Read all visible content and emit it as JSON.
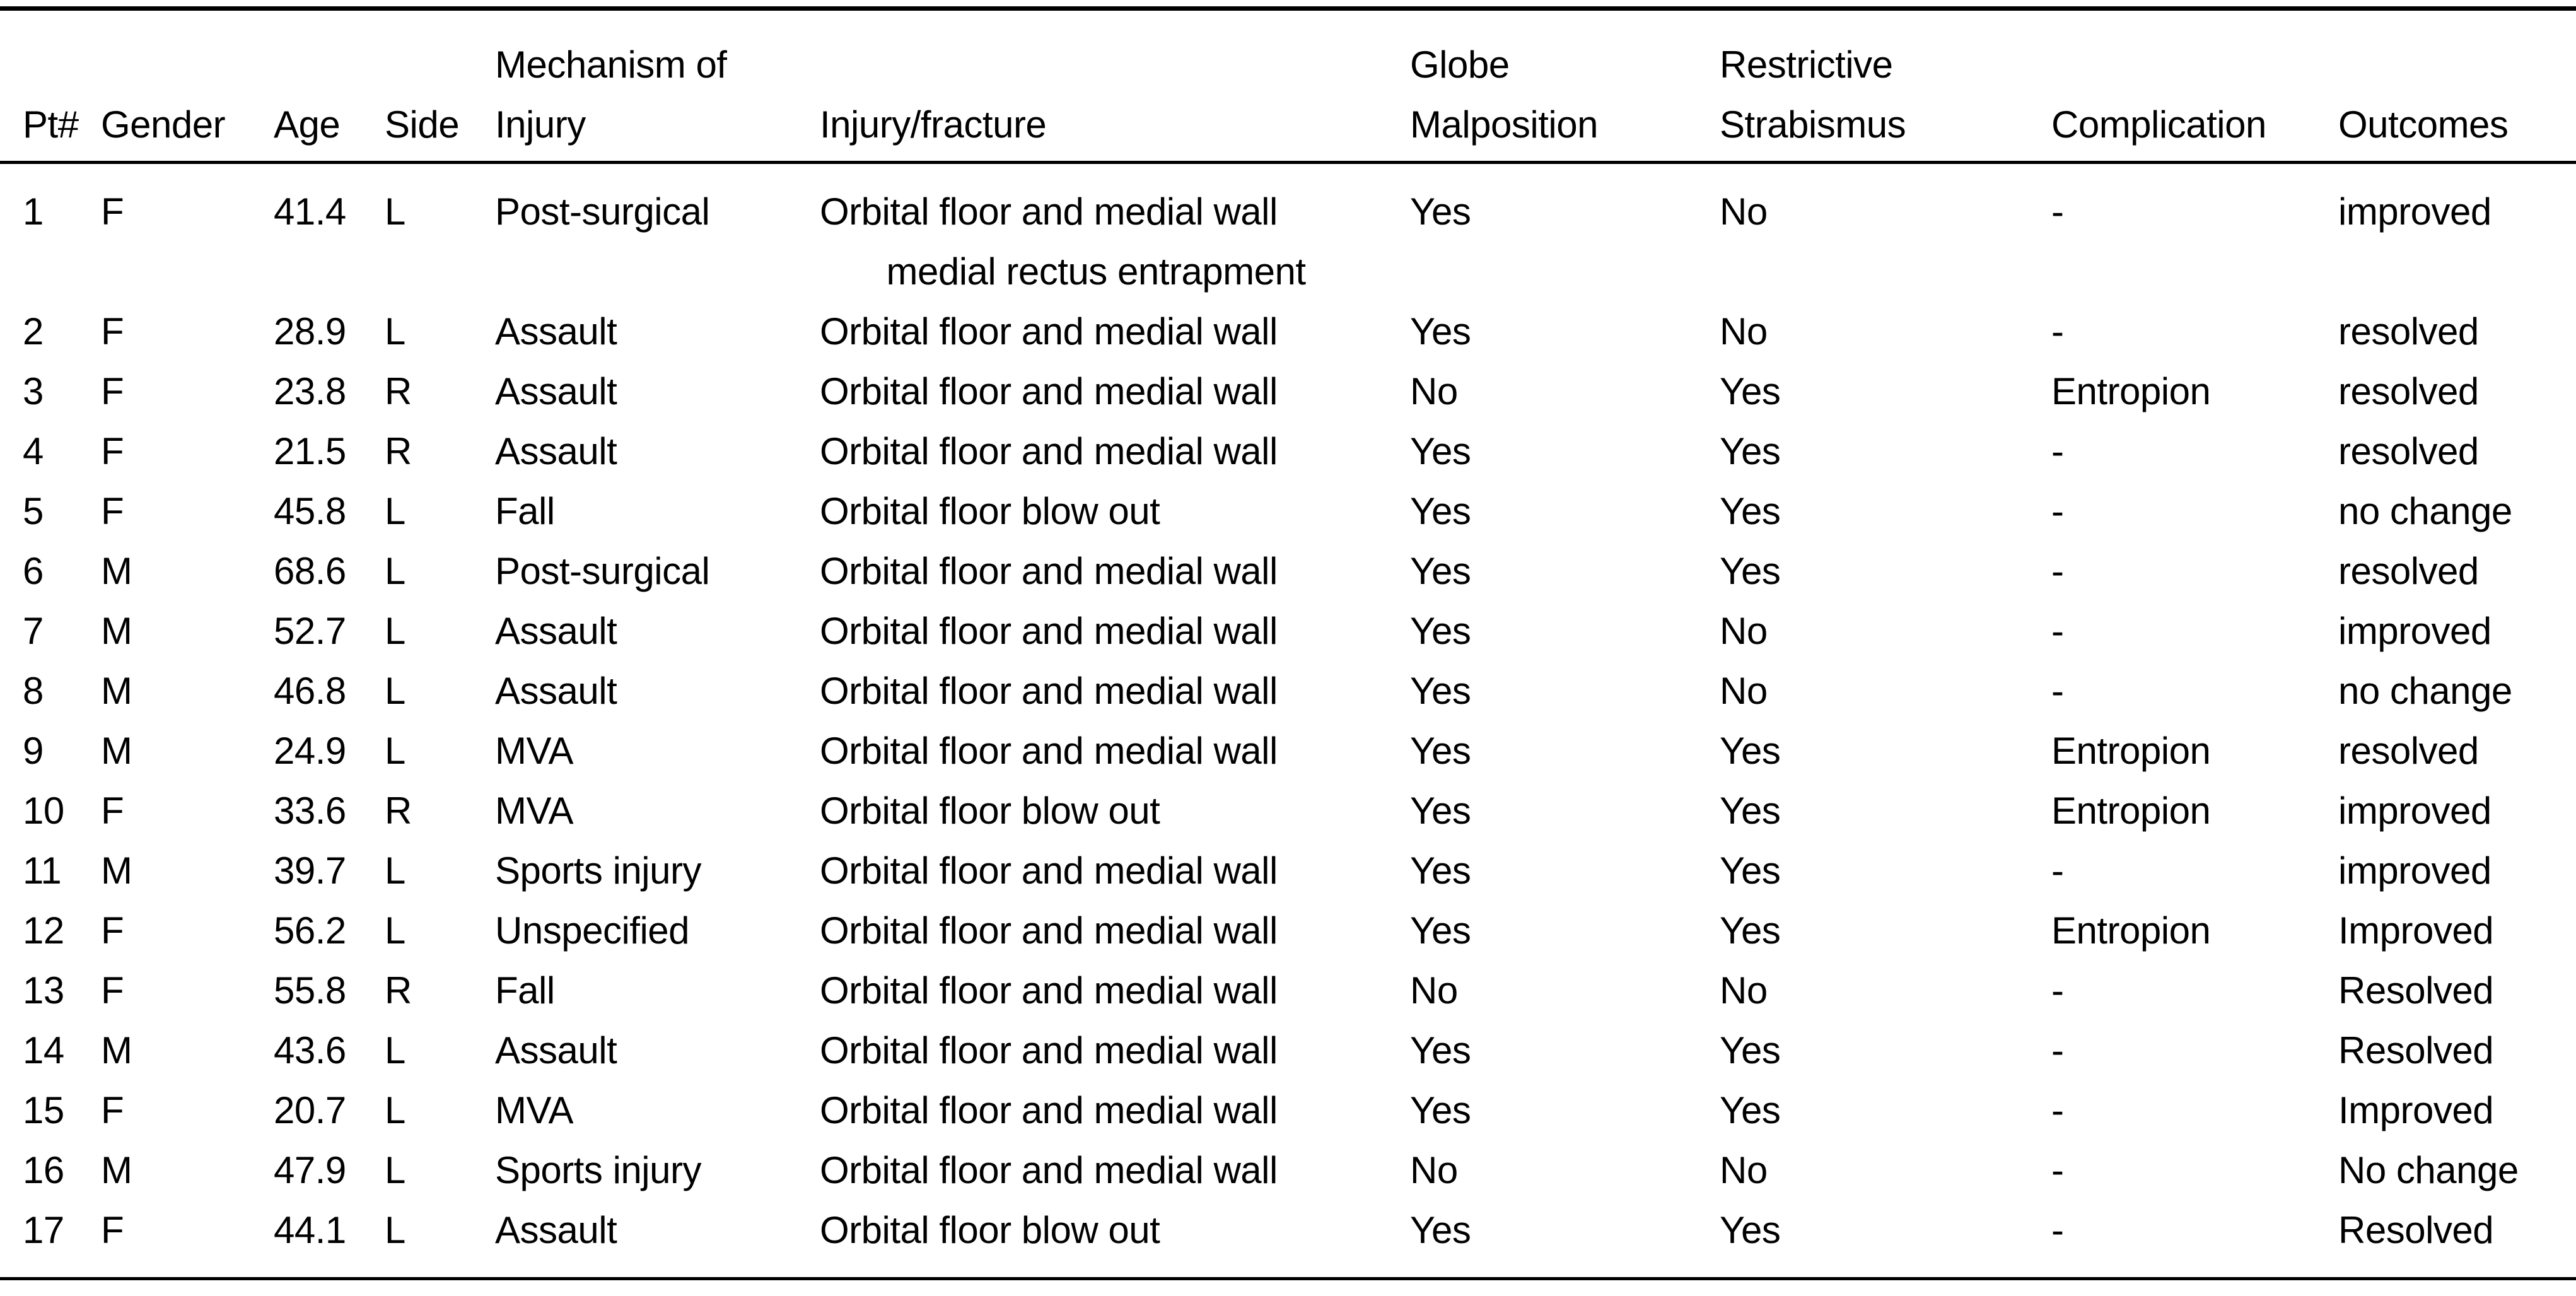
{
  "table": {
    "headers": [
      "Pt#",
      "Gender",
      "Age",
      "Side",
      "Mechanism of\nInjury",
      "Injury/fracture",
      "Globe\nMalposition",
      "Restrictive\nStrabismus",
      "Complication",
      "Outcomes"
    ],
    "rows": [
      {
        "pt": "1",
        "gender": "F",
        "age": "41.4",
        "side": "L",
        "mechanism": "Post-surgical",
        "injury": [
          "Orbital floor and medial wall",
          "medial rectus entrapment"
        ],
        "globe": "Yes",
        "strabismus": "No",
        "complication": "-",
        "outcome": "improved"
      },
      {
        "pt": "2",
        "gender": "F",
        "age": "28.9",
        "side": "L",
        "mechanism": "Assault",
        "injury": "Orbital floor and medial wall",
        "globe": "Yes",
        "strabismus": "No",
        "complication": "-",
        "outcome": "resolved"
      },
      {
        "pt": "3",
        "gender": "F",
        "age": "23.8",
        "side": "R",
        "mechanism": "Assault",
        "injury": "Orbital floor and medial wall",
        "globe": "No",
        "strabismus": "Yes",
        "complication": "Entropion",
        "outcome": "resolved"
      },
      {
        "pt": "4",
        "gender": "F",
        "age": "21.5",
        "side": "R",
        "mechanism": "Assault",
        "injury": "Orbital floor and medial wall",
        "globe": "Yes",
        "strabismus": "Yes",
        "complication": "-",
        "outcome": "resolved"
      },
      {
        "pt": "5",
        "gender": "F",
        "age": "45.8",
        "side": "L",
        "mechanism": "Fall",
        "injury": "Orbital floor blow out",
        "globe": "Yes",
        "strabismus": "Yes",
        "complication": "-",
        "outcome": "no change"
      },
      {
        "pt": "6",
        "gender": "M",
        "age": "68.6",
        "side": "L",
        "mechanism": "Post-surgical",
        "injury": "Orbital floor and medial wall",
        "globe": "Yes",
        "strabismus": "Yes",
        "complication": "-",
        "outcome": "resolved"
      },
      {
        "pt": "7",
        "gender": "M",
        "age": "52.7",
        "side": "L",
        "mechanism": "Assault",
        "injury": "Orbital floor and medial wall",
        "globe": "Yes",
        "strabismus": "No",
        "complication": "-",
        "outcome": "improved"
      },
      {
        "pt": "8",
        "gender": "M",
        "age": "46.8",
        "side": "L",
        "mechanism": "Assault",
        "injury": "Orbital floor and medial wall",
        "globe": "Yes",
        "strabismus": "No",
        "complication": "-",
        "outcome": "no change"
      },
      {
        "pt": "9",
        "gender": "M",
        "age": "24.9",
        "side": "L",
        "mechanism": "MVA",
        "injury": "Orbital floor and medial wall",
        "globe": "Yes",
        "strabismus": "Yes",
        "complication": "Entropion",
        "outcome": "resolved"
      },
      {
        "pt": "10",
        "gender": "F",
        "age": "33.6",
        "side": "R",
        "mechanism": "MVA",
        "injury": "Orbital floor blow out",
        "globe": "Yes",
        "strabismus": "Yes",
        "complication": "Entropion",
        "outcome": "improved"
      },
      {
        "pt": "11",
        "gender": "M",
        "age": "39.7",
        "side": "L",
        "mechanism": "Sports injury",
        "injury": "Orbital floor and medial wall",
        "globe": "Yes",
        "strabismus": "Yes",
        "complication": "-",
        "outcome": "improved"
      },
      {
        "pt": "12",
        "gender": "F",
        "age": "56.2",
        "side": "L",
        "mechanism": "Unspecified",
        "injury": "Orbital floor and medial wall",
        "globe": "Yes",
        "strabismus": "Yes",
        "complication": "Entropion",
        "outcome": "Improved"
      },
      {
        "pt": "13",
        "gender": "F",
        "age": "55.8",
        "side": "R",
        "mechanism": "Fall",
        "injury": "Orbital floor and medial wall",
        "globe": "No",
        "strabismus": "No",
        "complication": "-",
        "outcome": "Resolved"
      },
      {
        "pt": "14",
        "gender": "M",
        "age": "43.6",
        "side": "L",
        "mechanism": "Assault",
        "injury": "Orbital floor and medial wall",
        "globe": "Yes",
        "strabismus": "Yes",
        "complication": "-",
        "outcome": "Resolved"
      },
      {
        "pt": "15",
        "gender": "F",
        "age": "20.7",
        "side": "L",
        "mechanism": "MVA",
        "injury": "Orbital floor and medial wall",
        "globe": "Yes",
        "strabismus": "Yes",
        "complication": "-",
        "outcome": "Improved"
      },
      {
        "pt": "16",
        "gender": "M",
        "age": "47.9",
        "side": "L",
        "mechanism": "Sports injury",
        "injury": "Orbital floor and medial wall",
        "globe": "No",
        "strabismus": "No",
        "complication": "-",
        "outcome": "No change"
      },
      {
        "pt": "17",
        "gender": "F",
        "age": "44.1",
        "side": "L",
        "mechanism": "Assault",
        "injury": "Orbital floor blow out",
        "globe": "Yes",
        "strabismus": "Yes",
        "complication": "-",
        "outcome": "Resolved"
      }
    ]
  },
  "colors": {
    "text": "#000000",
    "background": "#ffffff"
  }
}
